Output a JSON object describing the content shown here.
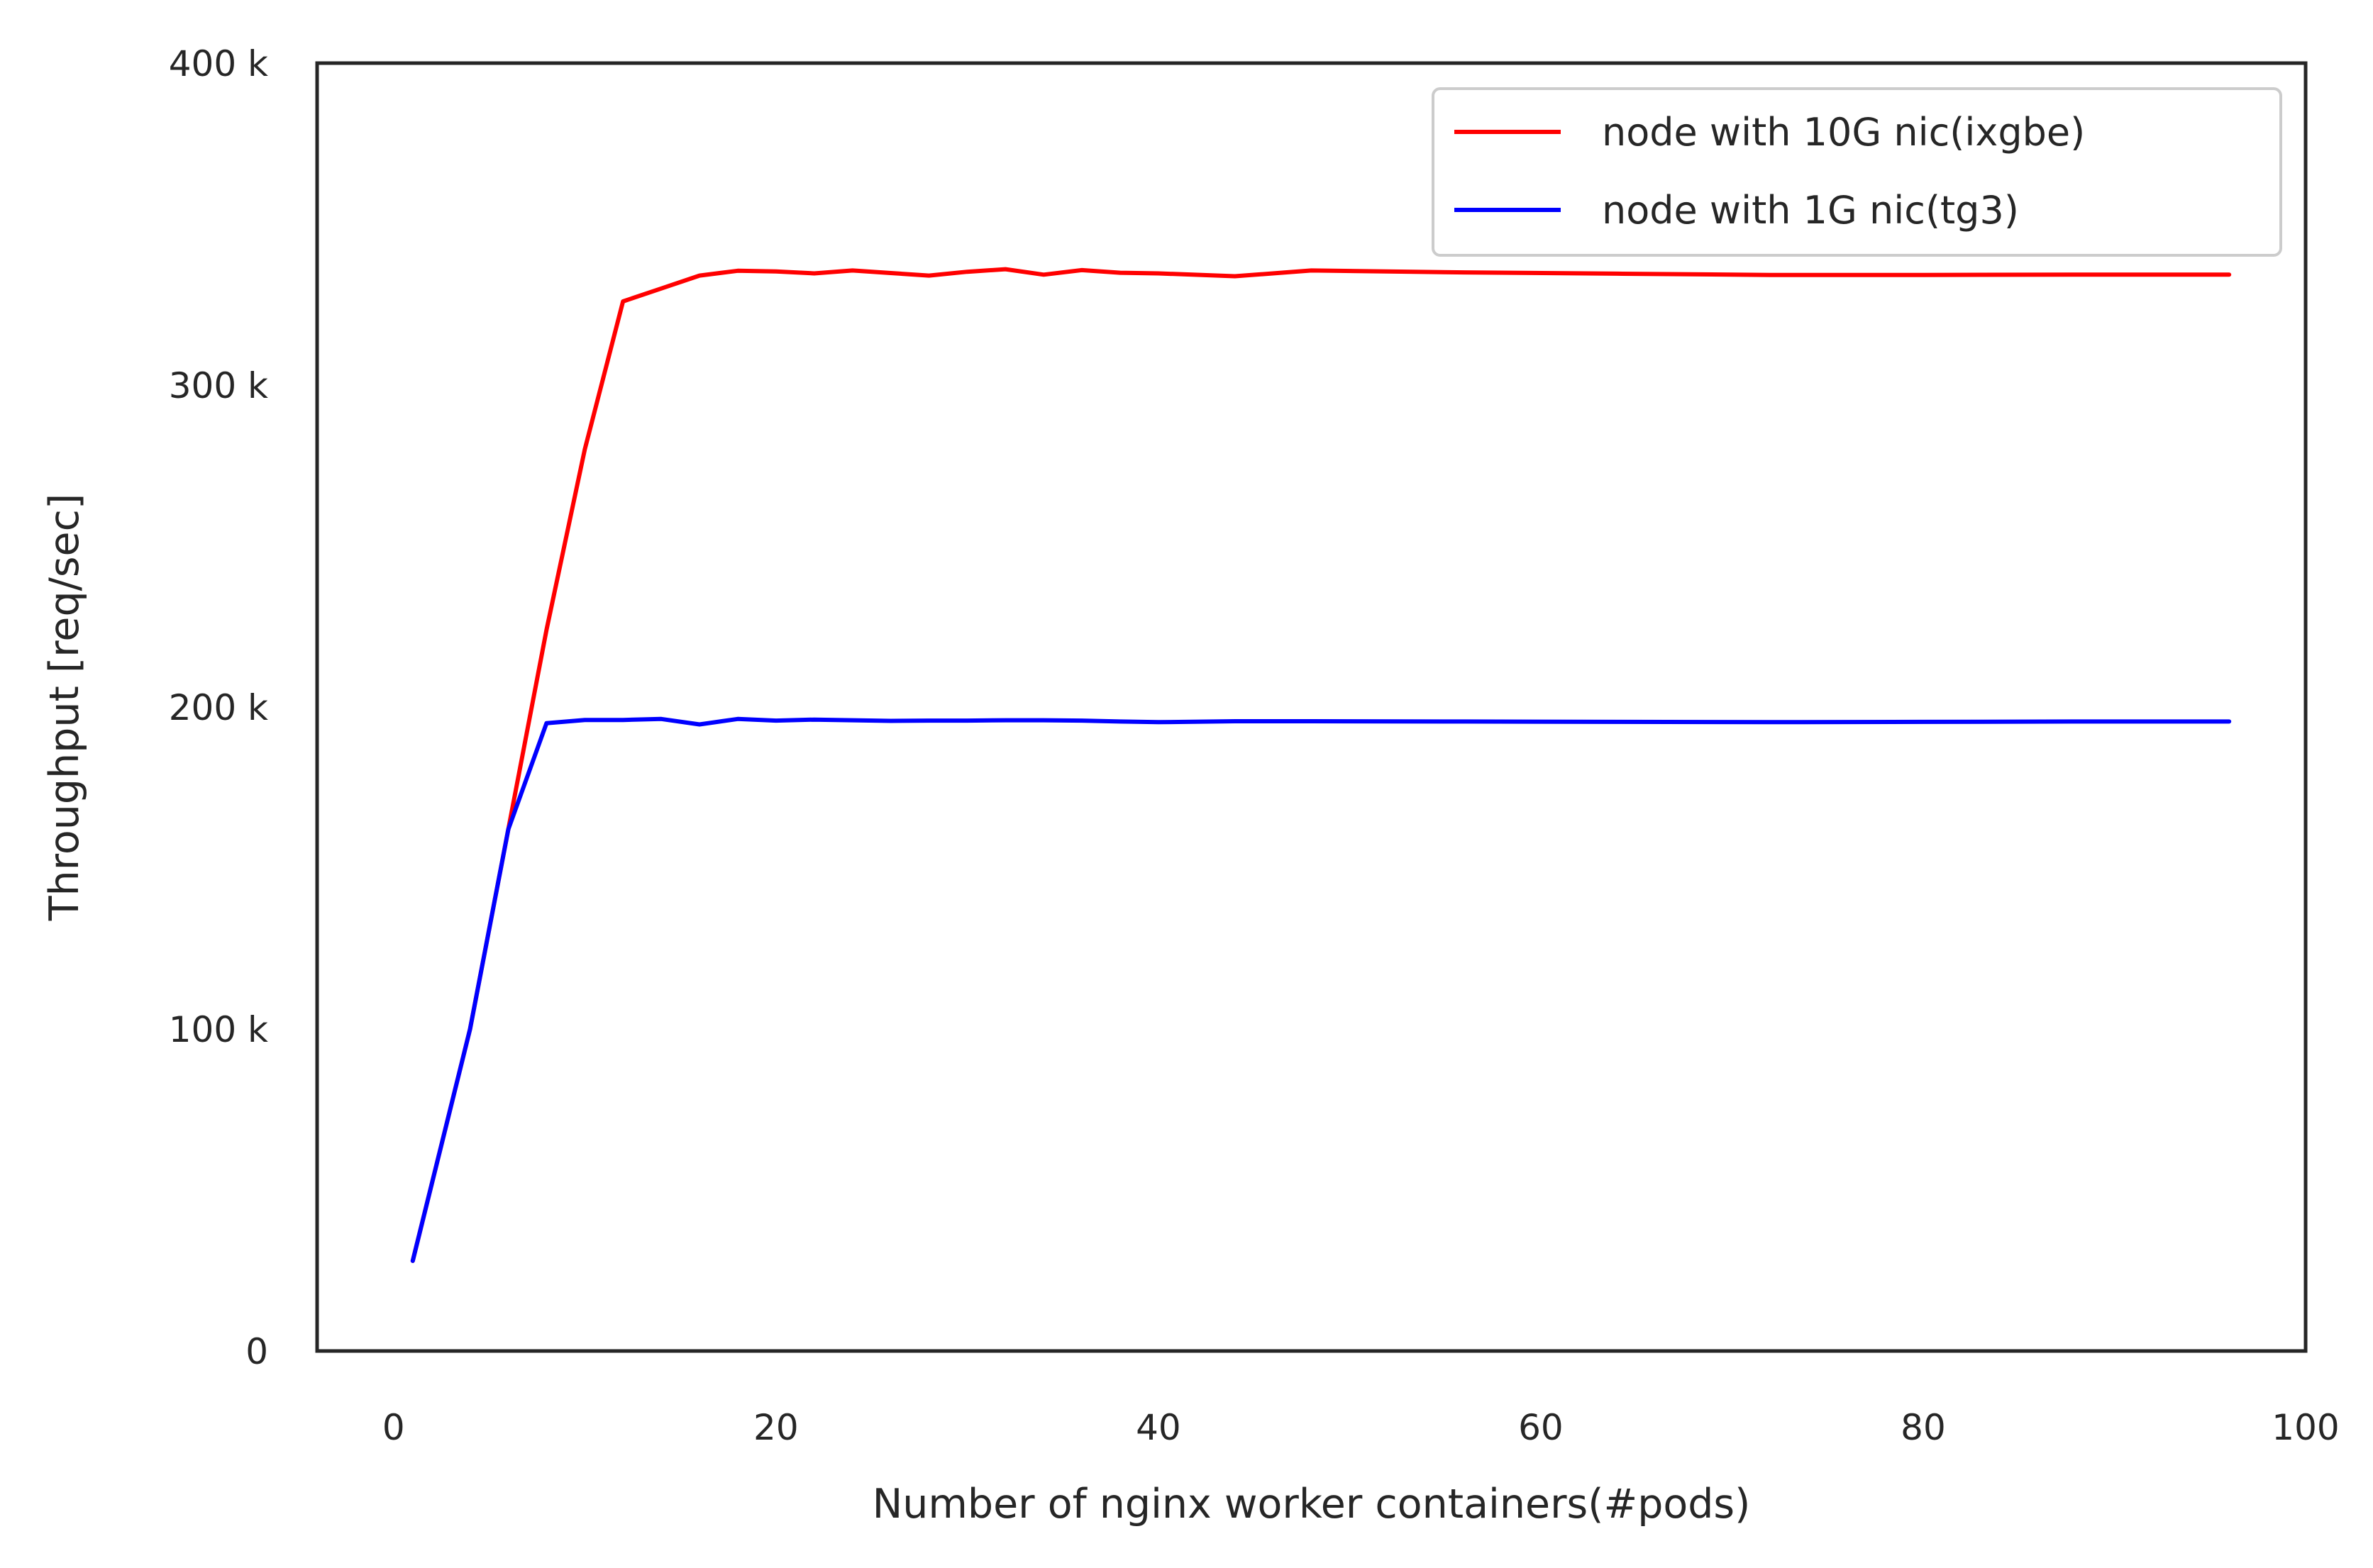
{
  "chart_data": {
    "type": "line",
    "xlabel": "Number of nginx worker containers(#pods)",
    "ylabel": "Throughput [req/sec]",
    "xlim": [
      -4,
      100
    ],
    "ylim": [
      0,
      400000
    ],
    "xticks": [
      0,
      20,
      40,
      60,
      80,
      100
    ],
    "xtick_labels": [
      "0",
      "20",
      "40",
      "60",
      "80",
      "100"
    ],
    "yticks": [
      0,
      100000,
      200000,
      300000,
      400000
    ],
    "ytick_labels": [
      "0",
      "100 k",
      "200 k",
      "300 k",
      "400 k"
    ],
    "grid": false,
    "legend_position": "top-right",
    "series": [
      {
        "name": "node with 10G nic(ixgbe)",
        "color": "#ff0000",
        "x": [
          1,
          4,
          6,
          8,
          10,
          12,
          14,
          16,
          18,
          20,
          22,
          24,
          26,
          28,
          30,
          32,
          34,
          36,
          38,
          40,
          44,
          48,
          56,
          64,
          72,
          80,
          88,
          96
        ],
        "y": [
          28000,
          100000,
          162000,
          224000,
          280000,
          326000,
          330000,
          334000,
          335500,
          335300,
          334700,
          335600,
          334800,
          334000,
          335200,
          336000,
          334300,
          335700,
          334900,
          334700,
          333800,
          335600,
          335000,
          334600,
          334200,
          334200,
          334300,
          334300
        ]
      },
      {
        "name": "node with 1G nic(tg3)",
        "color": "#0000ff",
        "x": [
          1,
          4,
          6,
          8,
          10,
          12,
          14,
          16,
          18,
          20,
          22,
          24,
          26,
          28,
          30,
          32,
          34,
          36,
          38,
          40,
          44,
          48,
          56,
          64,
          72,
          80,
          88,
          96
        ],
        "y": [
          28000,
          100000,
          162000,
          195000,
          196000,
          196000,
          196300,
          194600,
          196300,
          195800,
          196100,
          195900,
          195700,
          195800,
          195800,
          195900,
          195900,
          195800,
          195500,
          195300,
          195600,
          195600,
          195500,
          195400,
          195300,
          195400,
          195500,
          195500
        ]
      }
    ]
  }
}
